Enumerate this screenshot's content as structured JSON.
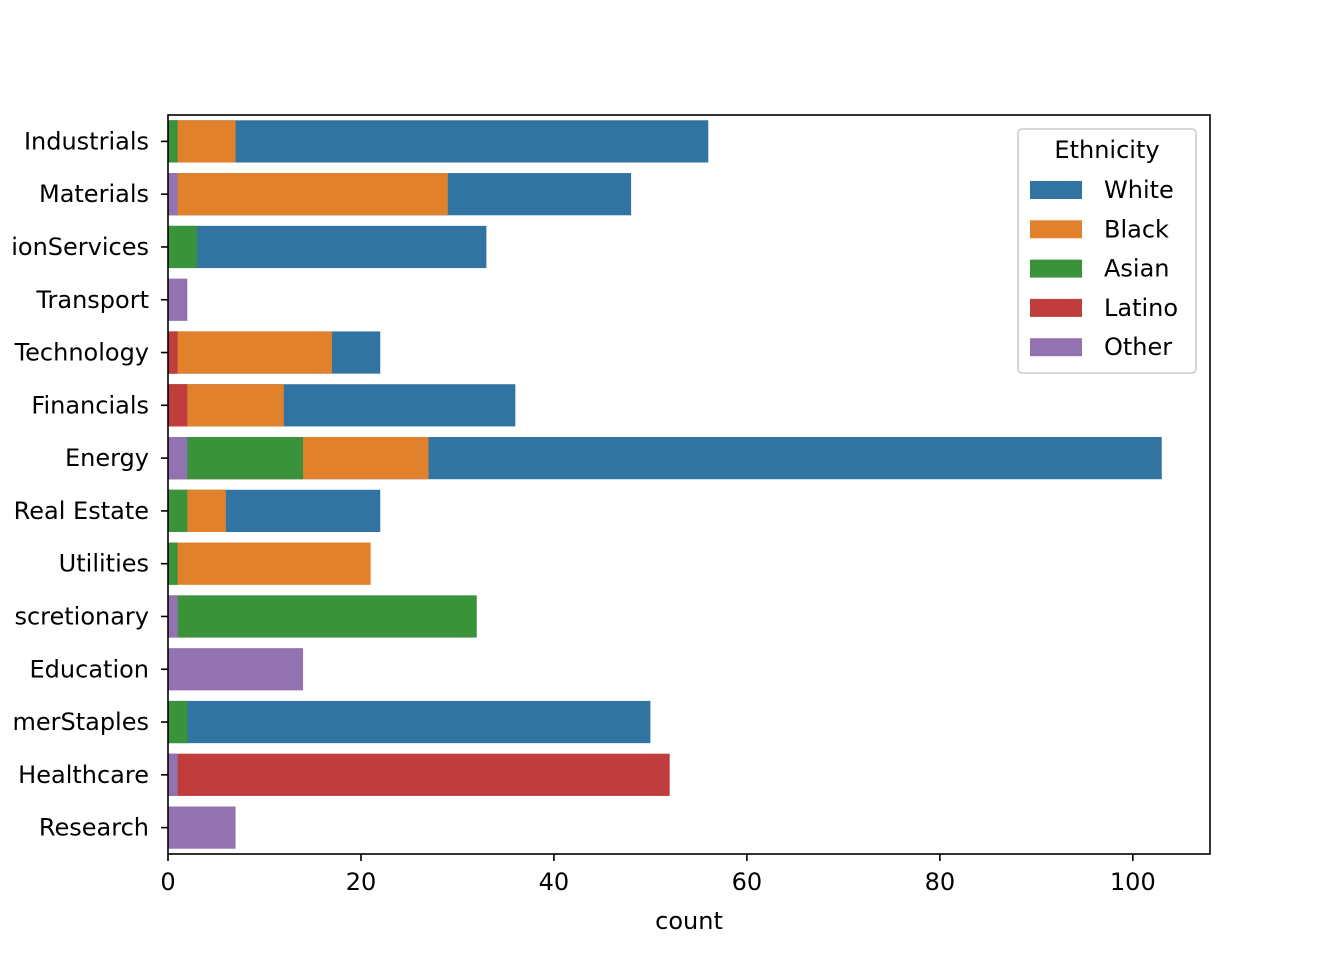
{
  "chart_data": {
    "type": "bar",
    "orientation": "horizontal",
    "overlap": true,
    "xlabel": "count",
    "ylabel": "",
    "xlim": [
      0,
      108
    ],
    "xticks": [
      0,
      20,
      40,
      60,
      80,
      100
    ],
    "categories": [
      "Industrials",
      "Materials",
      "ionServices",
      "Transport",
      "Technology",
      "Financials",
      "Energy",
      "Real Estate",
      "Utilities",
      "scretionary",
      "Education",
      "merStaples",
      "Healthcare",
      "Research"
    ],
    "series": [
      {
        "name": "White",
        "color": "#3274a1",
        "values": [
          56,
          48,
          33,
          null,
          22,
          36,
          103,
          22,
          null,
          null,
          null,
          50,
          null,
          null
        ]
      },
      {
        "name": "Black",
        "color": "#e1812c",
        "values": [
          7,
          29,
          null,
          null,
          17,
          12,
          27,
          6,
          21,
          null,
          null,
          null,
          null,
          null
        ]
      },
      {
        "name": "Asian",
        "color": "#3a923a",
        "values": [
          1,
          null,
          3,
          null,
          null,
          null,
          14,
          2,
          1,
          32,
          null,
          2,
          null,
          null
        ]
      },
      {
        "name": "Latino",
        "color": "#c03d3e",
        "values": [
          null,
          null,
          null,
          null,
          1,
          2,
          null,
          null,
          null,
          null,
          null,
          null,
          52,
          null
        ]
      },
      {
        "name": "Other",
        "color": "#9372b2",
        "values": [
          null,
          1,
          null,
          2,
          null,
          null,
          2,
          null,
          null,
          1,
          14,
          null,
          1,
          7
        ]
      }
    ],
    "legend": {
      "title": "Ethnicity",
      "placement": "top-right"
    }
  }
}
